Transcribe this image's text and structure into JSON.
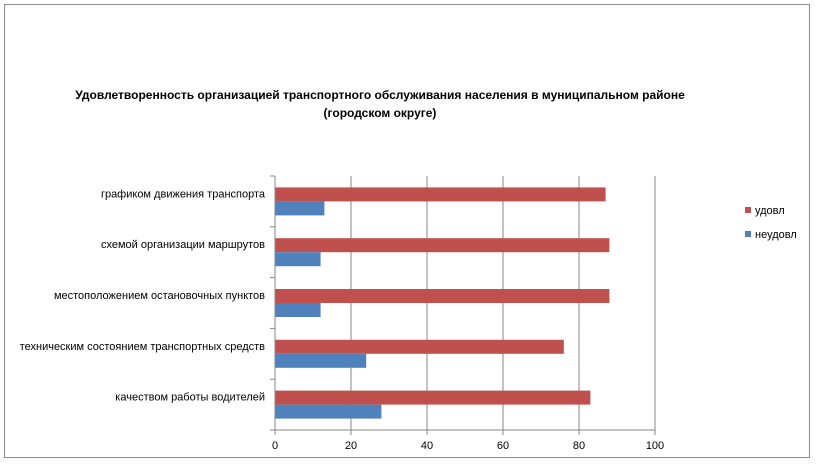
{
  "chart_data": {
    "type": "bar",
    "orientation": "horizontal",
    "title": "Удовлетворенность организацией транспортного обслуживания населения в муниципальном районе (городском округе)",
    "categories": [
      "графиком движения транспорта",
      "схемой организации маршрутов",
      "местоположением остановочных пунктов",
      "техническим состоянием транспортных средств",
      "качеством работы водителей"
    ],
    "series": [
      {
        "name": "удовл",
        "color": "#c0504d",
        "values": [
          87,
          88,
          88,
          76,
          83
        ]
      },
      {
        "name": "неудовл",
        "color": "#4f81bd",
        "values": [
          13,
          12,
          12,
          24,
          28
        ]
      }
    ],
    "xlim": [
      0,
      100
    ],
    "xticks": [
      0,
      20,
      40,
      60,
      80,
      100
    ],
    "grid": true,
    "legend_position": "right"
  }
}
